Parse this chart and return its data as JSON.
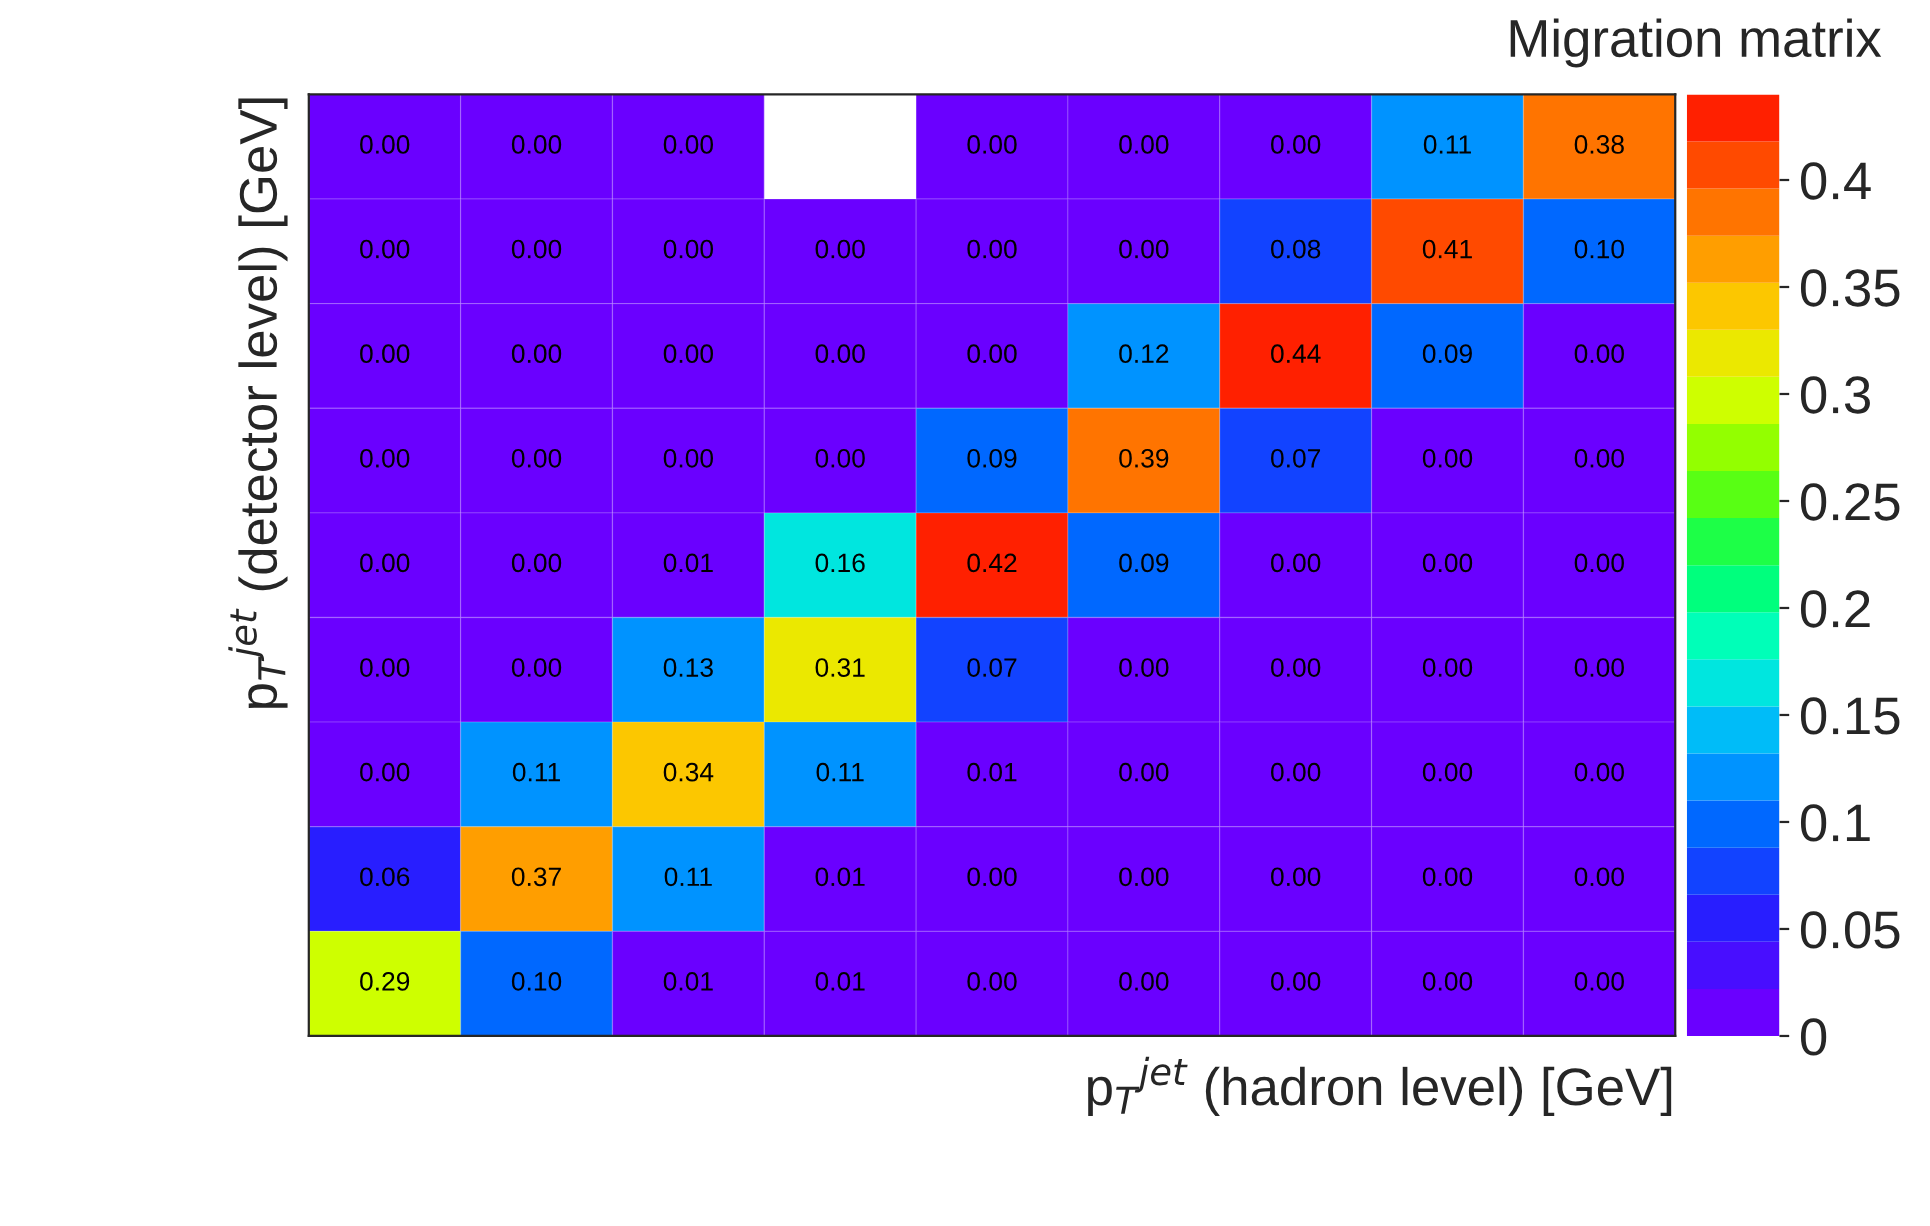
{
  "chart_data": {
    "type": "heatmap",
    "title": "Migration matrix",
    "xlabel": "p$_{T}$$^{jet}$ (hadron level) [GeV]",
    "ylabel": "p$_{T}$$^{jet}$ (detector level) [GeV]",
    "categories": [
      null,
      null,
      null,
      null,
      null,
      null,
      null,
      null,
      null
    ],
    "y_categories": [
      null,
      null,
      null,
      null,
      null,
      null,
      null,
      null,
      null
    ],
    "cells": [
      [
        0.0,
        0.0,
        0.0,
        null,
        0.0,
        0.0,
        0.0,
        0.11,
        0.38
      ],
      [
        0.0,
        0.0,
        0.0,
        0.0,
        0.0,
        0.0,
        0.08,
        0.41,
        0.1
      ],
      [
        0.0,
        0.0,
        0.0,
        0.0,
        0.0,
        0.12,
        0.44,
        0.09,
        0.0
      ],
      [
        0.0,
        0.0,
        0.0,
        0.0,
        0.09,
        0.39,
        0.07,
        0.0,
        0.0
      ],
      [
        0.0,
        0.0,
        0.01,
        0.16,
        0.42,
        0.09,
        0.0,
        0.0,
        0.0
      ],
      [
        0.0,
        0.0,
        0.13,
        0.31,
        0.07,
        0.0,
        0.0,
        0.0,
        0.0
      ],
      [
        0.0,
        0.11,
        0.34,
        0.11,
        0.01,
        0.0,
        0.0,
        0.0,
        0.0
      ],
      [
        0.06,
        0.37,
        0.11,
        0.01,
        0.0,
        0.0,
        0.0,
        0.0,
        0.0
      ],
      [
        0.29,
        0.1,
        0.01,
        0.01,
        0.0,
        0.0,
        0.0,
        0.0,
        0.0
      ]
    ],
    "cell_labels": [
      [
        "0.00",
        "0.00",
        "0.00",
        null,
        "0.00",
        "0.00",
        "0.00",
        "0.11",
        "0.38"
      ],
      [
        "0.00",
        "0.00",
        "0.00",
        "0.00",
        "0.00",
        "0.00",
        "0.08",
        "0.41",
        "0.10"
      ],
      [
        "0.00",
        "0.00",
        "0.00",
        "0.00",
        "0.00",
        "0.12",
        "0.44",
        "0.09",
        "0.00"
      ],
      [
        "0.00",
        "0.00",
        "0.00",
        "0.00",
        "0.09",
        "0.39",
        "0.07",
        "0.00",
        "0.00"
      ],
      [
        "0.00",
        "0.00",
        "0.01",
        "0.16",
        "0.42",
        "0.09",
        "0.00",
        "0.00",
        "0.00"
      ],
      [
        "0.00",
        "0.00",
        "0.13",
        "0.31",
        "0.07",
        "0.00",
        "0.00",
        "0.00",
        "0.00"
      ],
      [
        "0.00",
        "0.11",
        "0.34",
        "0.11",
        "0.01",
        "0.00",
        "0.00",
        "0.00",
        "0.00"
      ],
      [
        "0.06",
        "0.37",
        "0.11",
        "0.01",
        "0.00",
        "0.00",
        "0.00",
        "0.00",
        "0.00"
      ],
      [
        "0.29",
        "0.10",
        "0.01",
        "0.01",
        "0.00",
        "0.00",
        "0.00",
        "0.00",
        "0.00"
      ]
    ],
    "clim": [
      0,
      0.44
    ],
    "cticks": [
      0,
      0.05,
      0.1,
      0.15,
      0.2,
      0.25,
      0.3,
      0.35,
      0.4
    ]
  }
}
